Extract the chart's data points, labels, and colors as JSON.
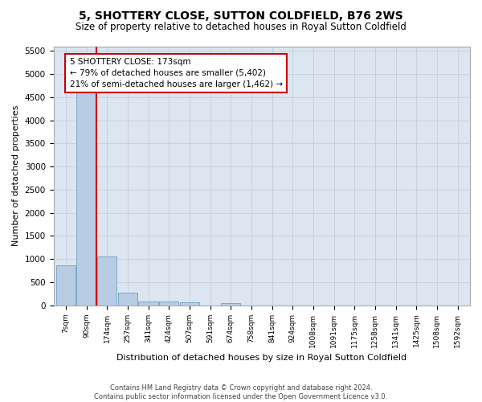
{
  "title": "5, SHOTTERY CLOSE, SUTTON COLDFIELD, B76 2WS",
  "subtitle": "Size of property relative to detached houses in Royal Sutton Coldfield",
  "xlabel": "Distribution of detached houses by size in Royal Sutton Coldfield",
  "ylabel": "Number of detached properties",
  "footer_line1": "Contains HM Land Registry data © Crown copyright and database right 2024.",
  "footer_line2": "Contains public sector information licensed under the Open Government Licence v3.0.",
  "bins": [
    "7sqm",
    "90sqm",
    "174sqm",
    "257sqm",
    "341sqm",
    "424sqm",
    "507sqm",
    "591sqm",
    "674sqm",
    "758sqm",
    "841sqm",
    "924sqm",
    "1008sqm",
    "1091sqm",
    "1175sqm",
    "1258sqm",
    "1341sqm",
    "1425sqm",
    "1508sqm",
    "1592sqm"
  ],
  "values": [
    870,
    4610,
    1050,
    270,
    85,
    78,
    72,
    0,
    50,
    0,
    0,
    0,
    0,
    0,
    0,
    0,
    0,
    0,
    0,
    0
  ],
  "bar_color": "#b8cce4",
  "bar_edge_color": "#7aa8cc",
  "red_line_x": 2,
  "annotation_text_line1": "5 SHOTTERY CLOSE: 173sqm",
  "annotation_text_line2": "← 79% of detached houses are smaller (5,402)",
  "annotation_text_line3": "21% of semi-detached houses are larger (1,462) →",
  "annotation_box_color": "#ffffff",
  "annotation_box_edge_color": "#cc0000",
  "ylim": [
    0,
    5600
  ],
  "yticks": [
    0,
    500,
    1000,
    1500,
    2000,
    2500,
    3000,
    3500,
    4000,
    4500,
    5000,
    5500
  ],
  "background_color": "#ffffff",
  "plot_bg_color": "#dce6f0",
  "grid_color": "#c0c8d8"
}
